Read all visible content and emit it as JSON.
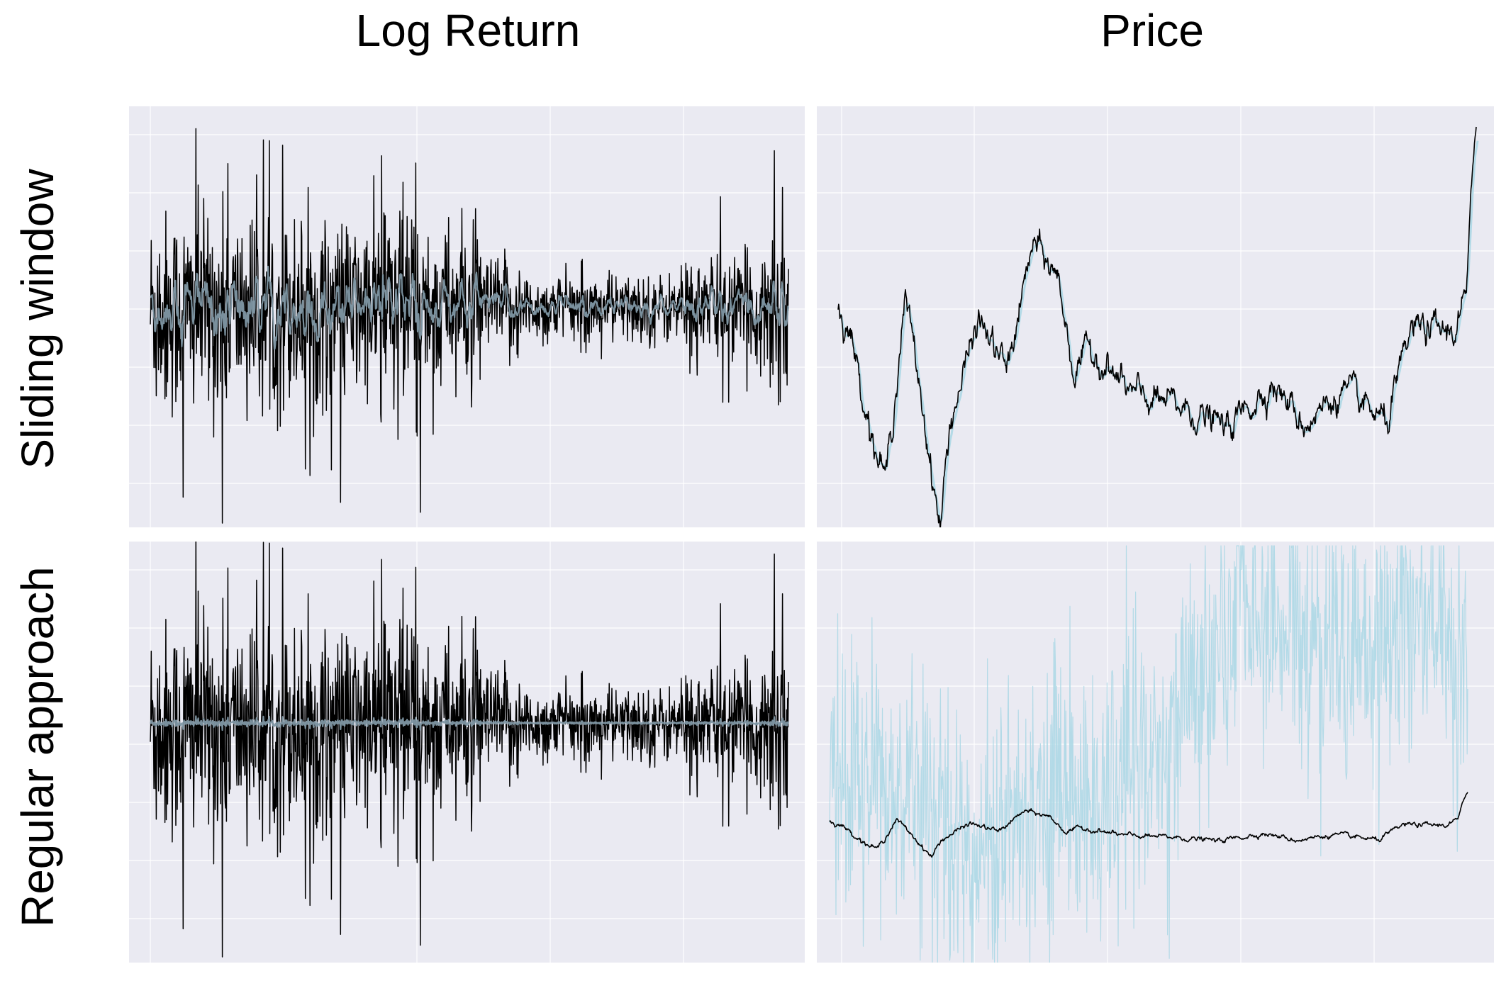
{
  "figure": {
    "col_titles": [
      "Log Return",
      "Price"
    ],
    "row_titles": [
      "Sliding window",
      "Regular approach"
    ]
  },
  "colors": {
    "panel_bg": "#eaeaf2",
    "grid": "#ffffff",
    "actual_series": "#000000",
    "predicted_series_logreturn": "#7f97a4",
    "predicted_series_price": "#add8e6"
  },
  "chart_data": [
    {
      "type": "line",
      "title": "Log Return",
      "row": "Sliding window",
      "x_range": [
        0,
        1000
      ],
      "ylim": [
        -1,
        1
      ],
      "grid": true,
      "ticks_labelled": false,
      "series": [],
      "approx_shape": {
        "actual": "noisy log returns around 0, spikes to about +0.92 / -1.0, larger volatility in first half, small near end with final spike",
        "predicted": "smoothed version tracking local mean near 0"
      }
    },
    {
      "type": "line",
      "title": "Price",
      "row": "Sliding window",
      "x_range": [
        0,
        1000
      ],
      "ylim": [
        0,
        1
      ],
      "grid": true,
      "ticks_labelled": false,
      "series": [],
      "keypoints": {
        "x": [
          0,
          20,
          60,
          75,
          105,
          120,
          160,
          175,
          220,
          265,
          305,
          345,
          370,
          395,
          460,
          540,
          610,
          680,
          730,
          790,
          860,
          900,
          965,
          985,
          1000
        ],
        "actual": [
          0.53,
          0.46,
          0.18,
          0.12,
          0.55,
          0.42,
          0.0,
          0.25,
          0.5,
          0.38,
          0.68,
          0.6,
          0.37,
          0.43,
          0.32,
          0.29,
          0.24,
          0.35,
          0.25,
          0.33,
          0.25,
          0.48,
          0.47,
          0.56,
          1.0
        ]
      }
    },
    {
      "type": "line",
      "title": "Log Return",
      "row": "Regular approach",
      "x_range": [
        0,
        1000
      ],
      "ylim": [
        -1,
        1
      ],
      "grid": true,
      "ticks_labelled": false,
      "series": [],
      "approx_shape": {
        "actual": "same log return series as above",
        "predicted": "nearly flat line at about 0"
      }
    },
    {
      "type": "line",
      "title": "Price",
      "row": "Regular approach",
      "x_range": [
        0,
        1000
      ],
      "ylim": [
        0,
        1
      ],
      "grid": true,
      "ticks_labelled": false,
      "series": [],
      "approx_shape": {
        "actual": "price series compressed near 0.25 of range",
        "predicted": "highly noisy wide band between about 0.0 and 1.0"
      }
    }
  ]
}
